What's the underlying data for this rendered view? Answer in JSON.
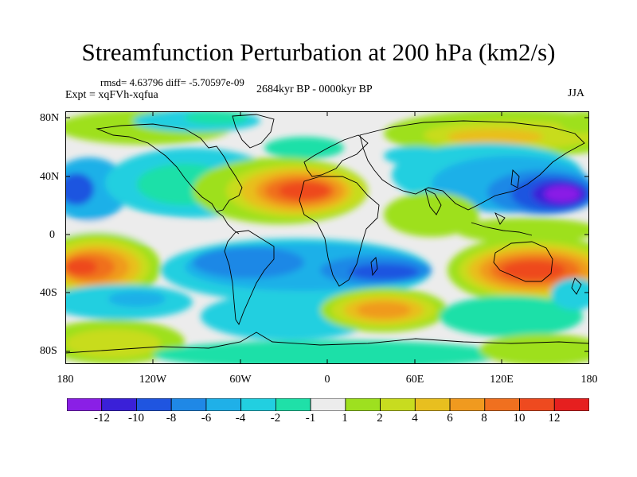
{
  "title": "Streamfunction Perturbation at 200 hPa (km2/s)",
  "stats": "rmsd= 4.63796 diff= -5.70597e-09",
  "experiment": "Expt = xqFVh-xqfua",
  "period": "2684kyr BP - 0000kyr BP",
  "season": "JJA",
  "lat_labels": [
    "80N",
    "40N",
    "0",
    "40S",
    "80S"
  ],
  "lon_labels": [
    "180",
    "120W",
    "60W",
    "0",
    "60E",
    "120E",
    "180"
  ],
  "colorbar": {
    "labels": [
      "-12",
      "-10",
      "-8",
      "-6",
      "-4",
      "-2",
      "-1",
      "1",
      "2",
      "4",
      "6",
      "8",
      "10",
      "12"
    ],
    "colors": [
      "#8a1fe6",
      "#3a20d8",
      "#1f55e0",
      "#1f88e6",
      "#1fb0e8",
      "#22cfe0",
      "#1fe0a8",
      "#ececec",
      "#9ee01f",
      "#c8dc1f",
      "#e8bf1f",
      "#f09a1f",
      "#f0701f",
      "#ee4a1f",
      "#e61f1f"
    ]
  }
}
